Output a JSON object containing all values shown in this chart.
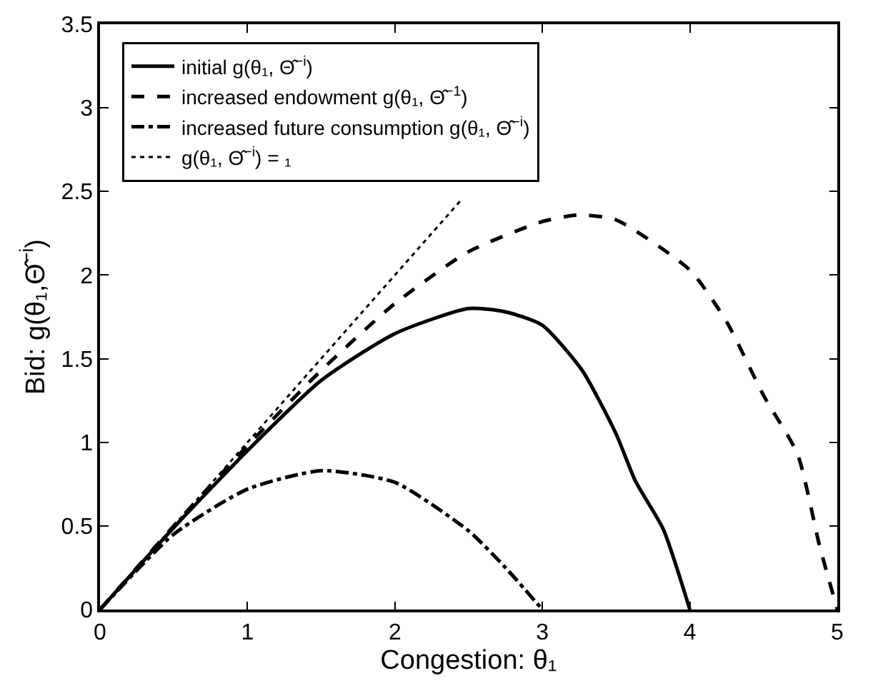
{
  "chart_data": {
    "type": "line",
    "xlabel": "Congestion: θ₁",
    "ylabel": "Bid: g(θ₁,Θ̂$^{−i}$)",
    "xlim": [
      0,
      5
    ],
    "xticks": [
      0,
      1,
      2,
      3,
      4,
      5
    ],
    "ylim": [
      0,
      3.5
    ],
    "yticks": [
      0,
      0.5,
      1,
      1.5,
      2,
      2.5,
      3,
      3.5
    ],
    "legend": "top left",
    "marker": "none",
    "series": [
      {
        "name": "initial g(θ₁, Θ̂$^{−i}$)",
        "color": "#000000",
        "line_style": "solid",
        "x": [
          0,
          0.5,
          1,
          1.5,
          2,
          2.5,
          2.75,
          3,
          3.27,
          3.5,
          3.63,
          3.82,
          4
        ],
        "values": [
          0,
          0.49,
          0.95,
          1.37,
          1.65,
          1.8,
          1.78,
          1.7,
          1.43,
          1.05,
          0.77,
          0.48,
          0
        ]
      },
      {
        "name": "increased endowment g(θ₁, Θ̂$^{−1}$)",
        "color": "#000000",
        "line_style": "dashed",
        "x": [
          0,
          0.5,
          1,
          1.5,
          2,
          2.5,
          3,
          3.25,
          3.5,
          4,
          4.25,
          4.5,
          4.73,
          4.88,
          5
        ],
        "values": [
          0,
          0.5,
          0.98,
          1.43,
          1.83,
          2.14,
          2.32,
          2.36,
          2.33,
          2.03,
          1.72,
          1.28,
          0.93,
          0.38,
          0
        ]
      },
      {
        "name": "increased future consumption g(θ₁, Θ̂$^{−i}$)",
        "color": "#000000",
        "line_style": "dashdot",
        "x": [
          0,
          0.5,
          1,
          1.5,
          2,
          2.5,
          2.75,
          3
        ],
        "values": [
          0,
          0.45,
          0.72,
          0.83,
          0.76,
          0.47,
          0.25,
          0
        ]
      },
      {
        "name": "g(θ₁, Θ̂$^{−i}$) = ₁",
        "color": "#000000",
        "line_style": "dotted",
        "x": [
          0,
          2.45
        ],
        "values": [
          0,
          2.45
        ]
      }
    ]
  }
}
